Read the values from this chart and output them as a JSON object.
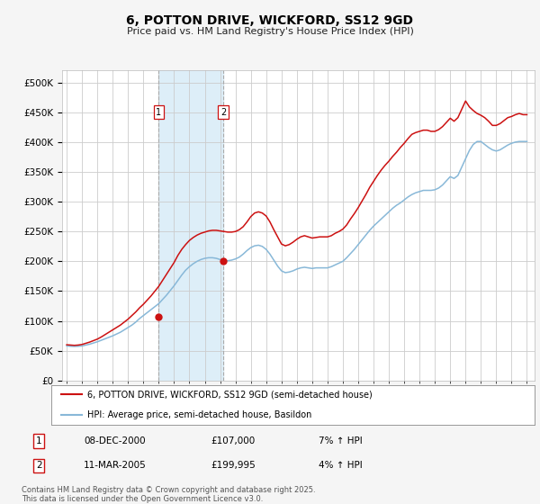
{
  "title": "6, POTTON DRIVE, WICKFORD, SS12 9GD",
  "subtitle": "Price paid vs. HM Land Registry's House Price Index (HPI)",
  "legend_label_red": "6, POTTON DRIVE, WICKFORD, SS12 9GD (semi-detached house)",
  "legend_label_blue": "HPI: Average price, semi-detached house, Basildon",
  "footnote": "Contains HM Land Registry data © Crown copyright and database right 2025.\nThis data is licensed under the Open Government Licence v3.0.",
  "transactions": [
    {
      "num": 1,
      "date": "08-DEC-2000",
      "price": 107000,
      "hpi_rel": "7% ↑ HPI",
      "year": 2001.0
    },
    {
      "num": 2,
      "date": "11-MAR-2005",
      "price": 199995,
      "hpi_rel": "4% ↑ HPI",
      "year": 2005.2
    }
  ],
  "background_color": "#f5f5f5",
  "plot_bg_color": "#ffffff",
  "grid_color": "#cccccc",
  "red_color": "#cc1111",
  "blue_color": "#88b8d8",
  "shade_color": "#ddeef8",
  "ylim": [
    0,
    520000
  ],
  "yticks": [
    0,
    50000,
    100000,
    150000,
    200000,
    250000,
    300000,
    350000,
    400000,
    450000,
    500000
  ],
  "xmin": 1994.7,
  "xmax": 2025.5,
  "hpi_years": [
    1995.0,
    1995.25,
    1995.5,
    1995.75,
    1996.0,
    1996.25,
    1996.5,
    1996.75,
    1997.0,
    1997.25,
    1997.5,
    1997.75,
    1998.0,
    1998.25,
    1998.5,
    1998.75,
    1999.0,
    1999.25,
    1999.5,
    1999.75,
    2000.0,
    2000.25,
    2000.5,
    2000.75,
    2001.0,
    2001.25,
    2001.5,
    2001.75,
    2002.0,
    2002.25,
    2002.5,
    2002.75,
    2003.0,
    2003.25,
    2003.5,
    2003.75,
    2004.0,
    2004.25,
    2004.5,
    2004.75,
    2005.0,
    2005.25,
    2005.5,
    2005.75,
    2006.0,
    2006.25,
    2006.5,
    2006.75,
    2007.0,
    2007.25,
    2007.5,
    2007.75,
    2008.0,
    2008.25,
    2008.5,
    2008.75,
    2009.0,
    2009.25,
    2009.5,
    2009.75,
    2010.0,
    2010.25,
    2010.5,
    2010.75,
    2011.0,
    2011.25,
    2011.5,
    2011.75,
    2012.0,
    2012.25,
    2012.5,
    2012.75,
    2013.0,
    2013.25,
    2013.5,
    2013.75,
    2014.0,
    2014.25,
    2014.5,
    2014.75,
    2015.0,
    2015.25,
    2015.5,
    2015.75,
    2016.0,
    2016.25,
    2016.5,
    2016.75,
    2017.0,
    2017.25,
    2017.5,
    2017.75,
    2018.0,
    2018.25,
    2018.5,
    2018.75,
    2019.0,
    2019.25,
    2019.5,
    2019.75,
    2020.0,
    2020.25,
    2020.5,
    2020.75,
    2021.0,
    2021.25,
    2021.5,
    2021.75,
    2022.0,
    2022.25,
    2022.5,
    2022.75,
    2023.0,
    2023.25,
    2023.5,
    2023.75,
    2024.0,
    2024.25,
    2024.5,
    2024.75,
    2025.0
  ],
  "hpi_values": [
    58000,
    57500,
    57200,
    57500,
    58000,
    59500,
    61000,
    63000,
    65000,
    67500,
    70000,
    72500,
    75000,
    78000,
    81000,
    85000,
    89000,
    93000,
    98000,
    104000,
    109000,
    114000,
    119000,
    124000,
    129000,
    136000,
    143000,
    151000,
    159000,
    168000,
    177000,
    185000,
    191000,
    196000,
    200000,
    203000,
    205000,
    206000,
    206000,
    205000,
    203000,
    202000,
    201000,
    202000,
    204000,
    207000,
    212000,
    218000,
    223000,
    226000,
    227000,
    225000,
    220000,
    212000,
    202000,
    192000,
    184000,
    181000,
    182000,
    184000,
    187000,
    189000,
    190000,
    189000,
    188000,
    189000,
    189000,
    189000,
    189000,
    191000,
    194000,
    197000,
    200000,
    206000,
    213000,
    220000,
    228000,
    236000,
    244000,
    252000,
    259000,
    265000,
    271000,
    277000,
    283000,
    289000,
    294000,
    298000,
    303000,
    308000,
    312000,
    315000,
    317000,
    319000,
    319000,
    319000,
    320000,
    323000,
    328000,
    335000,
    342000,
    339000,
    344000,
    358000,
    372000,
    386000,
    396000,
    401000,
    401000,
    396000,
    391000,
    387000,
    385000,
    387000,
    391000,
    395000,
    398000,
    400000,
    401000,
    401000,
    401000
  ],
  "red_years": [
    1995.0,
    1995.25,
    1995.5,
    1995.75,
    1996.0,
    1996.25,
    1996.5,
    1996.75,
    1997.0,
    1997.25,
    1997.5,
    1997.75,
    1998.0,
    1998.25,
    1998.5,
    1998.75,
    1999.0,
    1999.25,
    1999.5,
    1999.75,
    2000.0,
    2000.25,
    2000.5,
    2000.75,
    2001.0,
    2001.25,
    2001.5,
    2001.75,
    2002.0,
    2002.25,
    2002.5,
    2002.75,
    2003.0,
    2003.25,
    2003.5,
    2003.75,
    2004.0,
    2004.25,
    2004.5,
    2004.75,
    2005.0,
    2005.25,
    2005.5,
    2005.75,
    2006.0,
    2006.25,
    2006.5,
    2006.75,
    2007.0,
    2007.25,
    2007.5,
    2007.75,
    2008.0,
    2008.25,
    2008.5,
    2008.75,
    2009.0,
    2009.25,
    2009.5,
    2009.75,
    2010.0,
    2010.25,
    2010.5,
    2010.75,
    2011.0,
    2011.25,
    2011.5,
    2011.75,
    2012.0,
    2012.25,
    2012.5,
    2012.75,
    2013.0,
    2013.25,
    2013.5,
    2013.75,
    2014.0,
    2014.25,
    2014.5,
    2014.75,
    2015.0,
    2015.25,
    2015.5,
    2015.75,
    2016.0,
    2016.25,
    2016.5,
    2016.75,
    2017.0,
    2017.25,
    2017.5,
    2017.75,
    2018.0,
    2018.25,
    2018.5,
    2018.75,
    2019.0,
    2019.25,
    2019.5,
    2019.75,
    2020.0,
    2020.25,
    2020.5,
    2020.75,
    2021.0,
    2021.25,
    2021.5,
    2021.75,
    2022.0,
    2022.25,
    2022.5,
    2022.75,
    2023.0,
    2023.25,
    2023.5,
    2023.75,
    2024.0,
    2024.25,
    2024.5,
    2024.75,
    2025.0
  ],
  "red_values": [
    60000,
    59500,
    59000,
    59500,
    60500,
    62500,
    64500,
    67000,
    69500,
    73000,
    77000,
    81000,
    85000,
    89000,
    93000,
    98000,
    103000,
    109000,
    115000,
    122000,
    128000,
    135000,
    142000,
    150000,
    158000,
    168000,
    178000,
    188000,
    198000,
    210000,
    220000,
    228000,
    235000,
    240000,
    244000,
    247000,
    249000,
    251000,
    252000,
    252000,
    251000,
    250000,
    249000,
    249000,
    250000,
    253000,
    258000,
    266000,
    275000,
    281000,
    283000,
    281000,
    276000,
    266000,
    253000,
    241000,
    229000,
    226000,
    228000,
    232000,
    237000,
    241000,
    243000,
    241000,
    239000,
    240000,
    241000,
    241000,
    241000,
    243000,
    247000,
    250000,
    254000,
    261000,
    271000,
    280000,
    290000,
    301000,
    312000,
    324000,
    334000,
    344000,
    353000,
    361000,
    368000,
    376000,
    383000,
    391000,
    398000,
    406000,
    413000,
    416000,
    418000,
    420000,
    420000,
    418000,
    418000,
    421000,
    426000,
    433000,
    440000,
    435000,
    441000,
    455000,
    469000,
    459000,
    453000,
    448000,
    445000,
    441000,
    435000,
    428000,
    428000,
    431000,
    436000,
    441000,
    443000,
    446000,
    448000,
    446000,
    446000
  ]
}
